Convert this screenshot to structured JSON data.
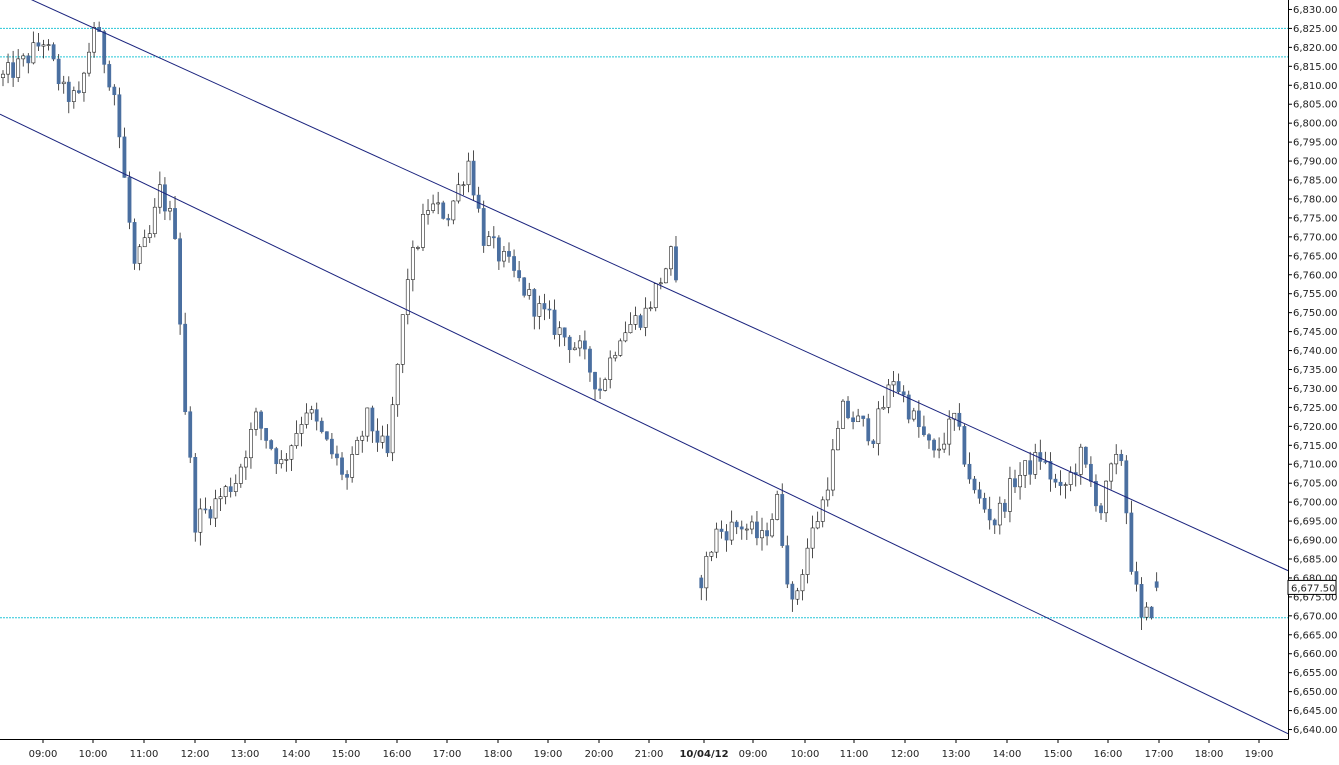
{
  "chart_data": {
    "type": "candlestick",
    "title": "",
    "xlabel": "",
    "ylabel": "",
    "ylim": [
      6637.5,
      6832.5
    ],
    "y_ticks": [
      6830,
      6825,
      6820,
      6815,
      6810,
      6805,
      6800,
      6795,
      6790,
      6785,
      6780,
      6775,
      6770,
      6765,
      6760,
      6755,
      6750,
      6745,
      6740,
      6735,
      6730,
      6725,
      6720,
      6715,
      6710,
      6705,
      6700,
      6695,
      6690,
      6685,
      6680,
      6675,
      6670,
      6665,
      6660,
      6655,
      6650,
      6645,
      6640
    ],
    "y_tick_labels": [
      "6,830.00",
      "6,825.00",
      "6,820.00",
      "6,815.00",
      "6,810.00",
      "6,805.00",
      "6,800.00",
      "6,795.00",
      "6,790.00",
      "6,785.00",
      "6,780.00",
      "6,775.00",
      "6,770.00",
      "6,765.00",
      "6,760.00",
      "6,755.00",
      "6,750.00",
      "6,745.00",
      "6,740.00",
      "6,735.00",
      "6,730.00",
      "6,725.00",
      "6,720.00",
      "6,715.00",
      "6,710.00",
      "6,705.00",
      "6,700.00",
      "6,695.00",
      "6,690.00",
      "6,685.00",
      "6,680.00",
      "6,675.00",
      "6,670.00",
      "6,665.00",
      "6,660.00",
      "6,655.00",
      "6,650.00",
      "6,645.00",
      "6,640.00"
    ],
    "x_ticks": [
      {
        "label": "09:00",
        "bold": false
      },
      {
        "label": "10:00",
        "bold": false
      },
      {
        "label": "11:00",
        "bold": false
      },
      {
        "label": "12:00",
        "bold": false
      },
      {
        "label": "13:00",
        "bold": false
      },
      {
        "label": "14:00",
        "bold": false
      },
      {
        "label": "15:00",
        "bold": false
      },
      {
        "label": "16:00",
        "bold": false
      },
      {
        "label": "17:00",
        "bold": false
      },
      {
        "label": "18:00",
        "bold": false
      },
      {
        "label": "19:00",
        "bold": false
      },
      {
        "label": "20:00",
        "bold": false
      },
      {
        "label": "21:00",
        "bold": false
      },
      {
        "label": "10/04/12",
        "bold": true
      },
      {
        "label": "09:00",
        "bold": false
      },
      {
        "label": "10:00",
        "bold": false
      },
      {
        "label": "11:00",
        "bold": false
      },
      {
        "label": "12:00",
        "bold": false
      },
      {
        "label": "13:00",
        "bold": false
      },
      {
        "label": "14:00",
        "bold": false
      },
      {
        "label": "15:00",
        "bold": false
      },
      {
        "label": "16:00",
        "bold": false
      },
      {
        "label": "17:00",
        "bold": false
      },
      {
        "label": "18:00",
        "bold": false
      },
      {
        "label": "19:00",
        "bold": false
      }
    ],
    "last_price": 6677.5,
    "last_price_label": "6,677.50",
    "horizontal_levels": [
      6825.0,
      6817.5,
      6669.5
    ],
    "channel_lines": [
      {
        "name": "",
        "from": {
          "bar": 0,
          "price": 6836
        },
        "to": {
          "bar": 239,
          "price": 6691
        }
      },
      {
        "name": "",
        "from": {
          "bar": 0,
          "price": 6802
        },
        "to": {
          "bar": 239,
          "price": 6648.5
        }
      }
    ],
    "colors": {
      "bull_candle": "#ffffff",
      "bear_candle": "#4a6fa0",
      "candle_outline": "#222222",
      "level_line": "#25c6d8",
      "channel_line": "#1a237e",
      "axis": "#000000"
    },
    "gaps": [
      {
        "after_bar": 133,
        "bars": 4
      }
    ],
    "keypoints_session1": [
      [
        0,
        6812
      ],
      [
        4,
        6816
      ],
      [
        8,
        6822
      ],
      [
        12,
        6808
      ],
      [
        15,
        6806
      ],
      [
        18,
        6826
      ],
      [
        22,
        6808
      ],
      [
        24,
        6785
      ],
      [
        26,
        6762
      ],
      [
        29,
        6770
      ],
      [
        31,
        6782
      ],
      [
        34,
        6772
      ],
      [
        36,
        6725
      ],
      [
        38,
        6695
      ],
      [
        42,
        6700
      ],
      [
        46,
        6706
      ],
      [
        50,
        6722
      ],
      [
        55,
        6710
      ],
      [
        60,
        6725
      ],
      [
        64,
        6715
      ],
      [
        68,
        6706
      ],
      [
        72,
        6722
      ],
      [
        76,
        6712
      ],
      [
        80,
        6760
      ],
      [
        84,
        6778
      ],
      [
        88,
        6776
      ],
      [
        92,
        6790
      ],
      [
        95,
        6770
      ],
      [
        100,
        6762
      ],
      [
        105,
        6752
      ],
      [
        110,
        6745
      ],
      [
        114,
        6740
      ],
      [
        118,
        6730
      ],
      [
        122,
        6745
      ],
      [
        127,
        6750
      ],
      [
        132,
        6765
      ],
      [
        133,
        6756
      ]
    ],
    "keypoints_session2": [
      [
        138,
        6680
      ],
      [
        141,
        6692
      ],
      [
        146,
        6694
      ],
      [
        150,
        6690
      ],
      [
        153,
        6700
      ],
      [
        156,
        6672
      ],
      [
        159,
        6688
      ],
      [
        162,
        6700
      ],
      [
        166,
        6724
      ],
      [
        172,
        6718
      ],
      [
        176,
        6733
      ],
      [
        180,
        6722
      ],
      [
        184,
        6712
      ],
      [
        188,
        6722
      ],
      [
        192,
        6702
      ],
      [
        196,
        6695
      ],
      [
        200,
        6706
      ],
      [
        205,
        6712
      ],
      [
        209,
        6702
      ],
      [
        213,
        6712
      ],
      [
        217,
        6698
      ],
      [
        219,
        6708
      ],
      [
        221,
        6712
      ],
      [
        223,
        6684
      ],
      [
        225,
        6668
      ],
      [
        227,
        6672
      ],
      [
        228,
        6678
      ]
    ],
    "total_bars": 239
  }
}
